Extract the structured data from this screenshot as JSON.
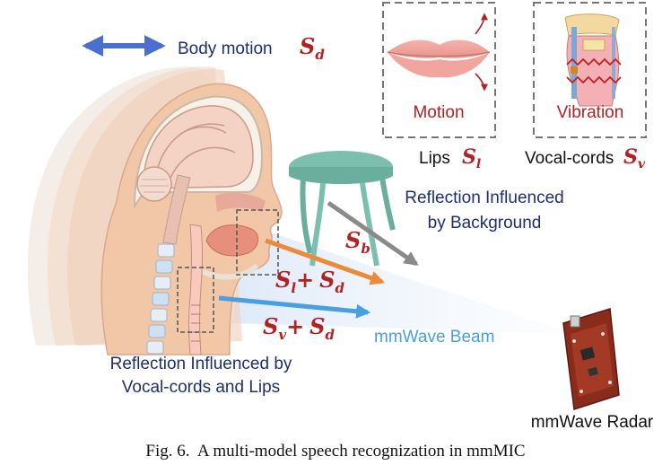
{
  "labels": {
    "body_motion": "Body motion",
    "lips_motion": "Motion",
    "vocal_vibration": "Vibration",
    "lips": "Lips",
    "vocal_cords": "Vocal-cords",
    "bg_reflection_line1": "Reflection Influenced",
    "bg_reflection_line2": "by Background",
    "beam": "mmWave Beam",
    "vc_reflection_line1": "Reflection Influenced by",
    "vc_reflection_line2": "Vocal-cords and Lips",
    "radar": "mmWave Radar"
  },
  "symbols": {
    "s": "S",
    "d": "d",
    "l": "l",
    "v": "v",
    "b": "b",
    "plus": "+"
  },
  "caption": "Fig. 6.  A multi-model speech recognization in mmMIC",
  "colors": {
    "symbol_red": "#b22222",
    "navy_text": "#1f2f6e",
    "beam_blue": "#4a9fe0",
    "arrow_orange": "#ec8a3a",
    "arrow_gray": "#8a8a8a",
    "motion_arrow": "#4a6fd0",
    "table": "#7dbfae",
    "box_dash": "#555555"
  }
}
